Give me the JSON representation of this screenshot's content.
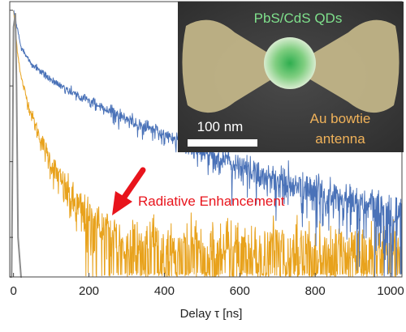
{
  "chart_data": {
    "type": "line",
    "xlabel": "Delay τ [ns]",
    "ylabel": "",
    "xlim": [
      -10,
      1030
    ],
    "y_scale": "log",
    "ylim": [
      0.0003,
      1.3
    ],
    "x_ticks": [
      0,
      200,
      400,
      600,
      800,
      1000
    ],
    "x_tick_labels": [
      "0",
      "200",
      "400",
      "600",
      "800",
      "1000"
    ],
    "grid": false,
    "series": [
      {
        "name": "",
        "color": "#4a72b8",
        "curve": "decay",
        "x": [
          0,
          20,
          50,
          100,
          150,
          200,
          300,
          400,
          500,
          600,
          700,
          800,
          900,
          1000,
          1030
        ],
        "y": [
          1.0,
          0.32,
          0.19,
          0.12,
          0.085,
          0.063,
          0.037,
          0.022,
          0.0135,
          0.0085,
          0.0056,
          0.0038,
          0.0027,
          0.0019,
          0.0017
        ]
      },
      {
        "name": "",
        "color": "#e8a21c",
        "curve": "decay",
        "x": [
          0,
          10,
          20,
          40,
          60,
          80,
          100,
          130,
          160,
          200,
          250,
          300,
          400,
          600,
          800,
          1030
        ],
        "y": [
          1.0,
          0.3,
          0.13,
          0.055,
          0.028,
          0.016,
          0.0095,
          0.005,
          0.0028,
          0.0016,
          0.001,
          0.0007,
          0.00055,
          0.0005,
          0.0005,
          0.0005
        ]
      },
      {
        "name": "",
        "color": "#8c8c8c",
        "curve": "irf",
        "x": [
          -5,
          0,
          5,
          8,
          12,
          20
        ],
        "y": [
          0.0003,
          0.6,
          0.9,
          0.1,
          0.001,
          0.0003
        ]
      }
    ],
    "annotations": [
      {
        "text": "Radiative Enhancement",
        "color": "#e8141c",
        "arrow": true
      }
    ],
    "inset": {
      "qd_label": "PbS/CdS QDs",
      "antenna_label_line1": "Au bowtie",
      "antenna_label_line2": "antenna",
      "scale_bar_label": "100 nm"
    }
  }
}
